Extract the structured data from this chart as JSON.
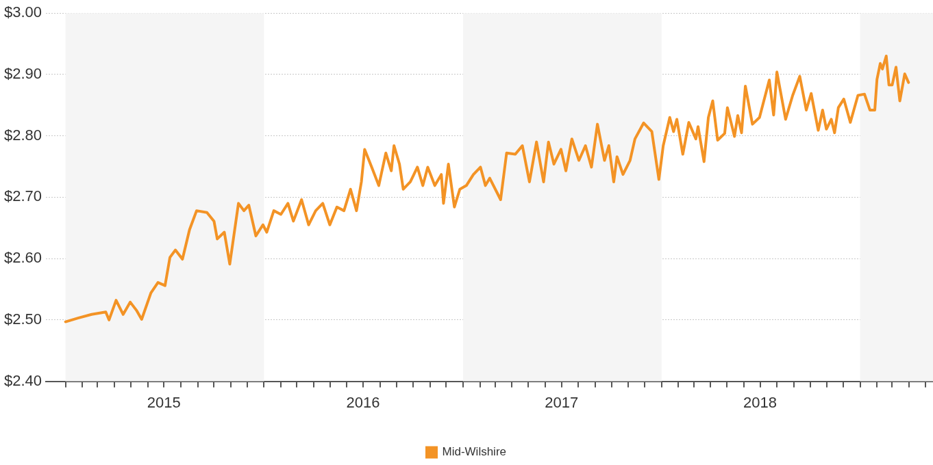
{
  "chart_data": {
    "type": "line",
    "legend": "bottom",
    "grid": "y",
    "marker": "none",
    "line_style": "solid",
    "xlim": [
      "2014-11-26",
      "2019-05-15"
    ],
    "ylim": [
      2.4,
      3.0
    ],
    "yticks": [
      {
        "value": 2.4,
        "label": "$2.40"
      },
      {
        "value": 2.5,
        "label": "$2.50"
      },
      {
        "value": 2.6,
        "label": "$2.60"
      },
      {
        "value": 2.7,
        "label": "$2.70"
      },
      {
        "value": 2.8,
        "label": "$2.80"
      },
      {
        "value": 2.9,
        "label": "$2.90"
      },
      {
        "value": 3.0,
        "label": "$3.00"
      }
    ],
    "xticks": [
      {
        "value": "2015-01-01",
        "label": null
      },
      {
        "value": "2015-02-01",
        "label": null
      },
      {
        "value": "2015-03-01",
        "label": null
      },
      {
        "value": "2015-04-01",
        "label": null
      },
      {
        "value": "2015-05-01",
        "label": null
      },
      {
        "value": "2015-06-01",
        "label": null
      },
      {
        "value": "2015-07-01",
        "label": "2015"
      },
      {
        "value": "2015-08-01",
        "label": null
      },
      {
        "value": "2015-09-01",
        "label": null
      },
      {
        "value": "2015-10-01",
        "label": null
      },
      {
        "value": "2015-11-01",
        "label": null
      },
      {
        "value": "2015-12-01",
        "label": null
      },
      {
        "value": "2016-01-01",
        "label": null
      },
      {
        "value": "2016-02-01",
        "label": null
      },
      {
        "value": "2016-03-01",
        "label": null
      },
      {
        "value": "2016-04-01",
        "label": null
      },
      {
        "value": "2016-05-01",
        "label": null
      },
      {
        "value": "2016-06-01",
        "label": null
      },
      {
        "value": "2016-07-01",
        "label": "2016"
      },
      {
        "value": "2016-08-01",
        "label": null
      },
      {
        "value": "2016-09-01",
        "label": null
      },
      {
        "value": "2016-10-01",
        "label": null
      },
      {
        "value": "2016-11-01",
        "label": null
      },
      {
        "value": "2016-12-01",
        "label": null
      },
      {
        "value": "2017-01-01",
        "label": null
      },
      {
        "value": "2017-02-01",
        "label": null
      },
      {
        "value": "2017-03-01",
        "label": null
      },
      {
        "value": "2017-04-01",
        "label": null
      },
      {
        "value": "2017-05-01",
        "label": null
      },
      {
        "value": "2017-06-01",
        "label": null
      },
      {
        "value": "2017-07-01",
        "label": "2017"
      },
      {
        "value": "2017-08-01",
        "label": null
      },
      {
        "value": "2017-09-01",
        "label": null
      },
      {
        "value": "2017-10-01",
        "label": null
      },
      {
        "value": "2017-11-01",
        "label": null
      },
      {
        "value": "2017-12-01",
        "label": null
      },
      {
        "value": "2018-01-01",
        "label": null
      },
      {
        "value": "2018-02-01",
        "label": null
      },
      {
        "value": "2018-03-01",
        "label": null
      },
      {
        "value": "2018-04-01",
        "label": null
      },
      {
        "value": "2018-05-01",
        "label": null
      },
      {
        "value": "2018-06-01",
        "label": null
      },
      {
        "value": "2018-07-01",
        "label": "2018"
      },
      {
        "value": "2018-08-01",
        "label": null
      },
      {
        "value": "2018-09-01",
        "label": null
      },
      {
        "value": "2018-10-01",
        "label": null
      },
      {
        "value": "2018-11-01",
        "label": null
      },
      {
        "value": "2018-12-01",
        "label": null
      },
      {
        "value": "2019-01-01",
        "label": null
      },
      {
        "value": "2019-02-01",
        "label": null
      },
      {
        "value": "2019-03-01",
        "label": null
      },
      {
        "value": "2019-04-01",
        "label": null
      },
      {
        "value": "2019-05-01",
        "label": null
      }
    ],
    "bands": [
      {
        "axis": "x",
        "from": "2015-01-01",
        "to": "2016-01-01",
        "color": "#f5f5f5"
      },
      {
        "axis": "x",
        "from": "2017-01-01",
        "to": "2018-01-01",
        "color": "#f5f5f5"
      },
      {
        "axis": "x",
        "from": "2019-01-01",
        "to": "2019-05-15",
        "color": "#f5f5f5"
      }
    ],
    "x": [
      "2015-01-01",
      "2015-01-24",
      "2015-02-18",
      "2015-03-16",
      "2015-03-22",
      "2015-04-04",
      "2015-04-17",
      "2015-04-30",
      "2015-05-12",
      "2015-05-21",
      "2015-06-07",
      "2015-06-20",
      "2015-07-03",
      "2015-07-12",
      "2015-07-22",
      "2015-08-04",
      "2015-08-17",
      "2015-08-30",
      "2015-09-18",
      "2015-10-01",
      "2015-10-07",
      "2015-10-20",
      "2015-10-30",
      "2015-11-15",
      "2015-11-25",
      "2015-12-04",
      "2015-12-17",
      "2015-12-30",
      "2016-01-06",
      "2016-01-19",
      "2016-02-01",
      "2016-02-14",
      "2016-02-24",
      "2016-03-10",
      "2016-03-23",
      "2016-04-05",
      "2016-04-18",
      "2016-05-01",
      "2016-05-14",
      "2016-05-27",
      "2016-06-08",
      "2016-06-19",
      "2016-06-28",
      "2016-07-04",
      "2016-07-17",
      "2016-07-30",
      "2016-08-12",
      "2016-08-22",
      "2016-08-27",
      "2016-09-06",
      "2016-09-13",
      "2016-09-26",
      "2016-10-09",
      "2016-10-19",
      "2016-10-28",
      "2016-11-10",
      "2016-11-22",
      "2016-11-26",
      "2016-12-05",
      "2016-12-16",
      "2016-12-26",
      "2017-01-07",
      "2017-01-20",
      "2017-02-02",
      "2017-02-11",
      "2017-02-19",
      "2017-03-11",
      "2017-03-22",
      "2017-04-07",
      "2017-04-20",
      "2017-05-03",
      "2017-05-16",
      "2017-05-29",
      "2017-06-07",
      "2017-06-17",
      "2017-06-30",
      "2017-07-09",
      "2017-07-20",
      "2017-08-02",
      "2017-08-14",
      "2017-08-25",
      "2017-09-05",
      "2017-09-18",
      "2017-09-26",
      "2017-10-05",
      "2017-10-11",
      "2017-10-22",
      "2017-11-04",
      "2017-11-13",
      "2017-11-29",
      "2017-12-14",
      "2017-12-27",
      "2018-01-04",
      "2018-01-16",
      "2018-01-23",
      "2018-01-29",
      "2018-02-09",
      "2018-02-20",
      "2018-03-05",
      "2018-03-09",
      "2018-03-20",
      "2018-03-28",
      "2018-04-05",
      "2018-04-14",
      "2018-04-27",
      "2018-05-02",
      "2018-05-15",
      "2018-05-21",
      "2018-05-28",
      "2018-06-04",
      "2018-06-17",
      "2018-06-30",
      "2018-07-18",
      "2018-07-26",
      "2018-08-01",
      "2018-08-17",
      "2018-08-30",
      "2018-09-12",
      "2018-09-24",
      "2018-10-03",
      "2018-10-16",
      "2018-10-24",
      "2018-10-31",
      "2018-11-09",
      "2018-11-15",
      "2018-11-22",
      "2018-12-02",
      "2018-12-14",
      "2018-12-28",
      "2019-01-09",
      "2019-01-19",
      "2019-01-28",
      "2019-02-01",
      "2019-02-07",
      "2019-02-11",
      "2019-02-18",
      "2019-02-23",
      "2019-03-01",
      "2019-03-08",
      "2019-03-15",
      "2019-03-24",
      "2019-03-31"
    ],
    "series": [
      {
        "name": "Mid-Wilshire",
        "color": "#f39325",
        "values": [
          2.497,
          2.503,
          2.509,
          2.513,
          2.5,
          2.532,
          2.509,
          2.529,
          2.515,
          2.501,
          2.544,
          2.561,
          2.556,
          2.602,
          2.614,
          2.599,
          2.647,
          2.678,
          2.675,
          2.661,
          2.632,
          2.643,
          2.591,
          2.69,
          2.678,
          2.687,
          2.637,
          2.655,
          2.643,
          2.678,
          2.672,
          2.69,
          2.661,
          2.696,
          2.655,
          2.678,
          2.69,
          2.655,
          2.684,
          2.678,
          2.713,
          2.678,
          2.725,
          2.778,
          2.749,
          2.719,
          2.772,
          2.743,
          2.784,
          2.754,
          2.713,
          2.725,
          2.749,
          2.719,
          2.749,
          2.719,
          2.737,
          2.69,
          2.754,
          2.684,
          2.713,
          2.719,
          2.737,
          2.749,
          2.719,
          2.731,
          2.696,
          2.772,
          2.77,
          2.784,
          2.725,
          2.79,
          2.725,
          2.79,
          2.754,
          2.778,
          2.743,
          2.795,
          2.76,
          2.784,
          2.749,
          2.819,
          2.76,
          2.784,
          2.725,
          2.766,
          2.737,
          2.76,
          2.795,
          2.821,
          2.807,
          2.729,
          2.784,
          2.83,
          2.807,
          2.827,
          2.77,
          2.822,
          2.795,
          2.815,
          2.758,
          2.83,
          2.857,
          2.793,
          2.804,
          2.846,
          2.799,
          2.833,
          2.805,
          2.881,
          2.819,
          2.83,
          2.891,
          2.834,
          2.904,
          2.827,
          2.866,
          2.897,
          2.842,
          2.869,
          2.809,
          2.842,
          2.811,
          2.827,
          2.805,
          2.846,
          2.86,
          2.822,
          2.866,
          2.868,
          2.842,
          2.842,
          2.892,
          2.918,
          2.909,
          2.93,
          2.883,
          2.883,
          2.912,
          2.857,
          2.901,
          2.887
        ]
      }
    ]
  }
}
